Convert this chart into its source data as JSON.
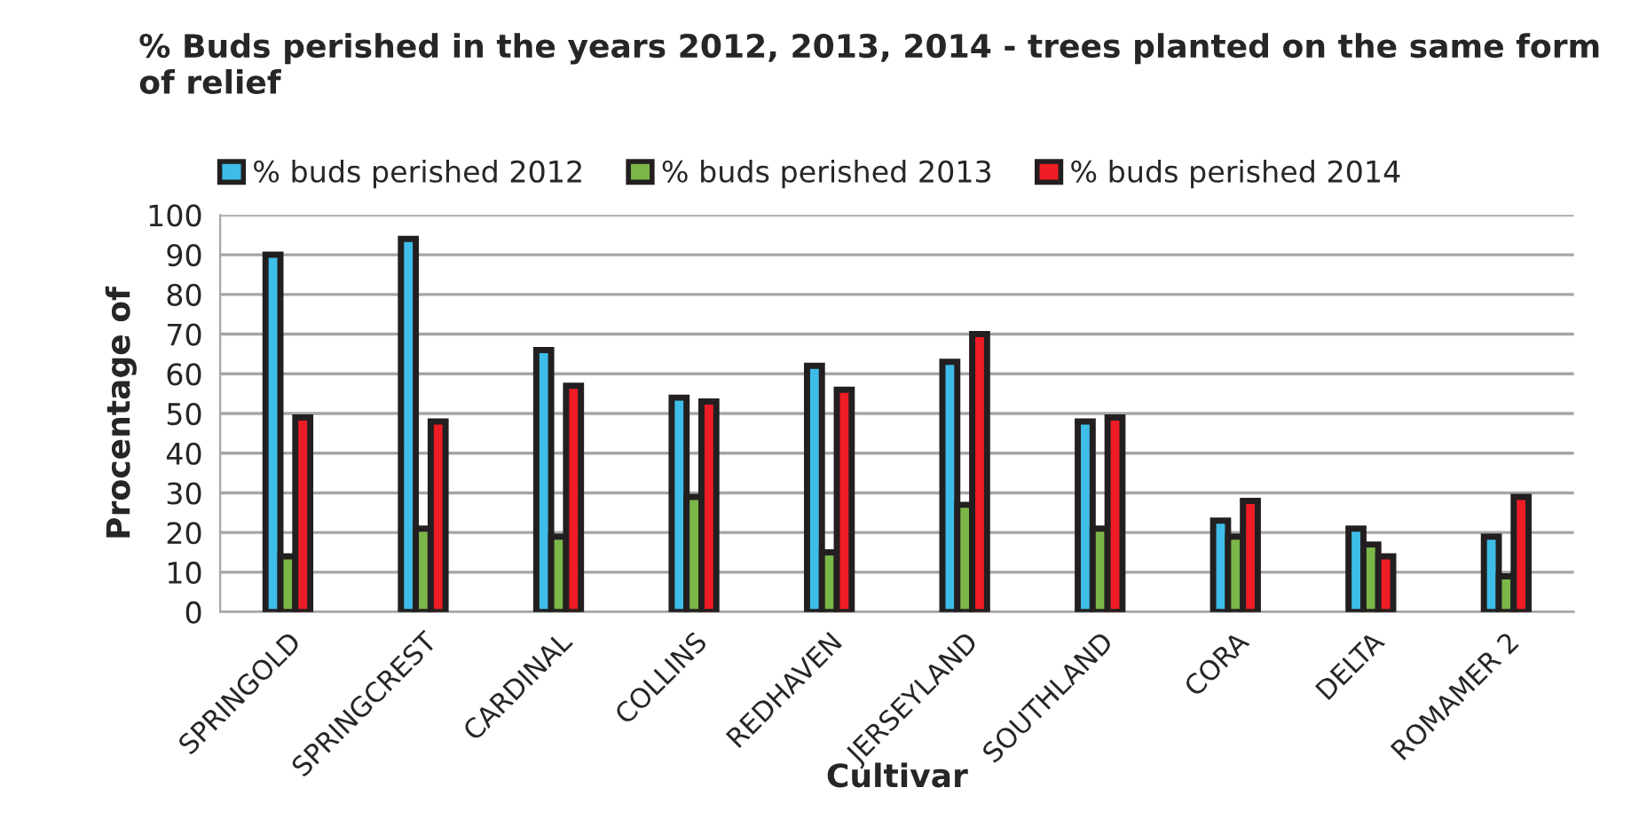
{
  "chart_data": {
    "type": "bar",
    "title": "% Buds perished in the years 2012, 2013, 2014 - trees planted on the same form of relief",
    "xlabel": "Cultivar",
    "ylabel": "Procentage of",
    "categories": [
      "SPRINGOLD",
      "SPRINGCREST",
      "CARDINAL",
      "COLLINS",
      "REDHAVEN",
      "JERSEYLAND",
      "SOUTHLAND",
      "CORA",
      "DELTA",
      "ROMAMER 2"
    ],
    "series": [
      {
        "name": "% buds perished 2012",
        "color": "#3dbde8",
        "values": [
          90,
          94,
          66,
          54,
          62,
          63,
          48,
          23,
          21,
          19
        ]
      },
      {
        "name": "% buds perished 2013",
        "color": "#7ab648",
        "values": [
          14,
          21,
          19,
          29,
          15,
          27,
          21,
          19,
          17,
          9
        ]
      },
      {
        "name": "% buds perished 2014",
        "color": "#ee1c24",
        "values": [
          49,
          48,
          57,
          53,
          56,
          70,
          49,
          28,
          14,
          29
        ]
      }
    ],
    "ylim": [
      0,
      100
    ],
    "yticks": [
      0,
      10,
      20,
      30,
      40,
      50,
      60,
      70,
      80,
      90,
      100
    ],
    "grid": "y",
    "legend": "top left"
  }
}
